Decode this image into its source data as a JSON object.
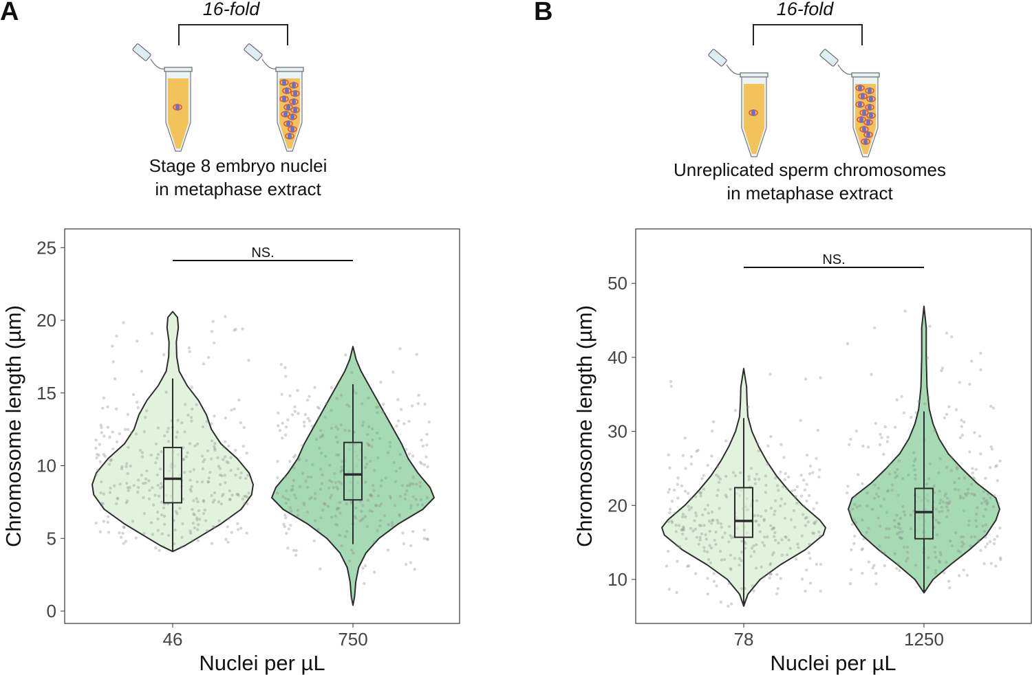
{
  "panels": [
    {
      "letter": "A",
      "fold_label": "16-fold",
      "caption_line1": "Stage 8 embryo nuclei",
      "caption_line2": "in metaphase extract",
      "significance": "NS."
    },
    {
      "letter": "B",
      "fold_label": "16-fold",
      "caption_line1": "Unreplicated sperm chromosomes",
      "caption_line2": "in metaphase extract",
      "significance": "NS."
    }
  ],
  "colors": {
    "low": "#e1f3dd",
    "high": "#a6dab4",
    "outline": "#2b2b2b",
    "point": "#8a8a8a",
    "tube": "#f1c35a"
  },
  "chart_data": [
    {
      "type": "violin",
      "title": "A",
      "xlabel": "Nuclei per µL",
      "ylabel": "Chromosome length (µm)",
      "ylim": [
        -1,
        26
      ],
      "yticks": [
        0,
        5,
        10,
        15,
        20,
        25
      ],
      "categories": [
        "46",
        "750"
      ],
      "annotation": "NS.",
      "series": [
        {
          "name": "46",
          "color": "low",
          "min": 4.1,
          "q1": 7.45,
          "median": 9.1,
          "q3": 11.25,
          "max": 20.6,
          "whisker_low": 4.1,
          "whisker_high": 16.0,
          "density": [
            [
              4.1,
              0
            ],
            [
              4.5,
              0.15
            ],
            [
              5,
              0.3
            ],
            [
              6,
              0.6
            ],
            [
              7,
              0.85
            ],
            [
              8,
              0.98
            ],
            [
              8.7,
              1
            ],
            [
              9.5,
              0.95
            ],
            [
              10.5,
              0.8
            ],
            [
              11.5,
              0.6
            ],
            [
              12.5,
              0.48
            ],
            [
              13.5,
              0.42
            ],
            [
              14.5,
              0.32
            ],
            [
              15.5,
              0.18
            ],
            [
              16.5,
              0.08
            ],
            [
              17.5,
              0.05
            ],
            [
              18.5,
              0.045
            ],
            [
              19.5,
              0.07
            ],
            [
              20.2,
              0.06
            ],
            [
              20.6,
              0
            ]
          ]
        },
        {
          "name": "750",
          "color": "high",
          "min": 0.4,
          "q1": 7.65,
          "median": 9.4,
          "q3": 11.6,
          "max": 18.2,
          "whisker_low": 4.6,
          "whisker_high": 15.6,
          "density": [
            [
              0.4,
              0
            ],
            [
              1,
              0.02
            ],
            [
              2,
              0.035
            ],
            [
              3,
              0.07
            ],
            [
              4,
              0.16
            ],
            [
              5,
              0.32
            ],
            [
              6,
              0.56
            ],
            [
              7,
              0.86
            ],
            [
              7.8,
              1
            ],
            [
              8.5,
              0.95
            ],
            [
              9.5,
              0.8
            ],
            [
              10.5,
              0.68
            ],
            [
              11.5,
              0.6
            ],
            [
              12.5,
              0.5
            ],
            [
              13.5,
              0.4
            ],
            [
              14.5,
              0.3
            ],
            [
              15.5,
              0.2
            ],
            [
              16.5,
              0.1
            ],
            [
              17.3,
              0.04
            ],
            [
              18.2,
              0
            ]
          ]
        }
      ]
    },
    {
      "type": "violin",
      "title": "B",
      "xlabel": "Nuclei per µL",
      "ylabel": "Chromosome length (µm)",
      "ylim": [
        4,
        57
      ],
      "yticks": [
        10,
        20,
        30,
        40,
        50
      ],
      "categories": [
        "78",
        "1250"
      ],
      "annotation": "NS.",
      "series": [
        {
          "name": "78",
          "color": "low",
          "min": 6.4,
          "q1": 15.7,
          "median": 17.9,
          "q3": 22.4,
          "max": 38.5,
          "whisker_low": 6.4,
          "whisker_high": 31.8,
          "density": [
            [
              6.4,
              0
            ],
            [
              8,
              0.05
            ],
            [
              10,
              0.2
            ],
            [
              12,
              0.45
            ],
            [
              14,
              0.75
            ],
            [
              16,
              0.97
            ],
            [
              17,
              1
            ],
            [
              18,
              0.93
            ],
            [
              20,
              0.72
            ],
            [
              22,
              0.55
            ],
            [
              24,
              0.4
            ],
            [
              26,
              0.28
            ],
            [
              28,
              0.18
            ],
            [
              30,
              0.1
            ],
            [
              32,
              0.05
            ],
            [
              34,
              0.04
            ],
            [
              36,
              0.035
            ],
            [
              38.5,
              0
            ]
          ]
        },
        {
          "name": "1250",
          "color": "high",
          "min": 8.2,
          "q1": 15.5,
          "median": 19.1,
          "q3": 22.3,
          "max": 46.9,
          "whisker_low": 8.2,
          "whisker_high": 32.7,
          "density": [
            [
              8.2,
              0
            ],
            [
              10,
              0.12
            ],
            [
              12,
              0.35
            ],
            [
              14,
              0.6
            ],
            [
              16,
              0.82
            ],
            [
              18,
              0.95
            ],
            [
              19.5,
              1
            ],
            [
              21,
              0.95
            ],
            [
              23,
              0.7
            ],
            [
              25,
              0.5
            ],
            [
              27,
              0.32
            ],
            [
              29,
              0.2
            ],
            [
              31,
              0.12
            ],
            [
              33,
              0.07
            ],
            [
              36,
              0.04
            ],
            [
              40,
              0.03
            ],
            [
              44,
              0.03
            ],
            [
              46.9,
              0
            ]
          ]
        }
      ]
    }
  ]
}
